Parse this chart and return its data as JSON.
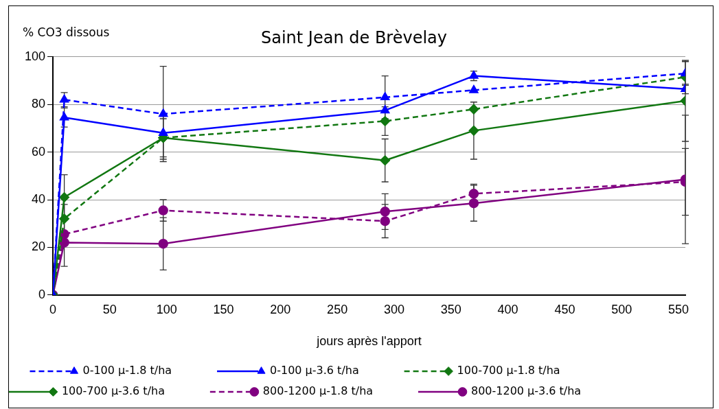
{
  "chart_data": {
    "type": "line",
    "title": "Saint Jean de Brèvelay",
    "ylabel": "% CO3 dissous",
    "xlabel": "jours après l'apport",
    "x": [
      0,
      10,
      97,
      292,
      370,
      556
    ],
    "xlim": [
      0,
      556
    ],
    "xticks": [
      0,
      50,
      100,
      150,
      200,
      250,
      300,
      350,
      400,
      450,
      500,
      550
    ],
    "ylim": [
      0,
      100
    ],
    "yticks": [
      0,
      20,
      40,
      60,
      80,
      100
    ],
    "grid": "y",
    "legend": "bottom",
    "series": [
      {
        "name": "0-100 µ-1.8 t/ha",
        "color": "#0000ff",
        "line_style": "dashed",
        "marker": "triangle",
        "values": [
          0,
          82,
          76,
          83,
          86,
          93
        ],
        "errors": [
          null,
          3,
          20,
          9,
          null,
          5
        ]
      },
      {
        "name": "0-100 µ-3.6 t/ha",
        "color": "#0000ff",
        "line_style": "solid",
        "marker": "triangle",
        "values": [
          0,
          74.5,
          68,
          77.5,
          92,
          86.5
        ],
        "errors": [
          null,
          4,
          null,
          null,
          2,
          2
        ]
      },
      {
        "name": "100-700 µ-1.8 t/ha",
        "color": "#117711",
        "line_style": "dashed",
        "marker": "diamond",
        "values": [
          0,
          32,
          66,
          73,
          78,
          91.5
        ],
        "errors": [
          null,
          6,
          9,
          6,
          null,
          null
        ]
      },
      {
        "name": "100-700 µ-3.6 t/ha",
        "color": "#117711",
        "line_style": "solid",
        "marker": "diamond",
        "values": [
          0,
          41,
          66,
          56.5,
          69,
          81.5
        ],
        "errors": [
          null,
          9.5,
          8,
          9,
          12,
          17
        ]
      },
      {
        "name": "800-1200 µ-1.8 t/ha",
        "color": "#800080",
        "line_style": "dashed",
        "marker": "circle",
        "values": [
          0,
          25.5,
          35.5,
          31,
          42.5,
          47.5
        ],
        "errors": [
          null,
          null,
          4.5,
          7,
          4,
          14
        ]
      },
      {
        "name": "800-1200 µ-3.6 t/ha",
        "color": "#800080",
        "line_style": "solid",
        "marker": "circle",
        "values": [
          0,
          22,
          21.5,
          35,
          38.5,
          48.5
        ],
        "errors": [
          null,
          10,
          11,
          7.5,
          7.5,
          27
        ]
      }
    ]
  }
}
